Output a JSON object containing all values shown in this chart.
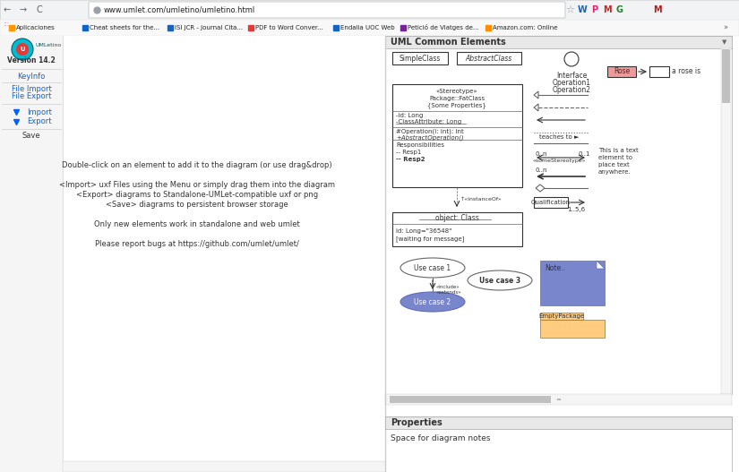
{
  "bg_color": "#ffffff",
  "url": "www.umlet.com/umletino/umletino.html",
  "bookmarks": [
    "Aplicaciones",
    "Cheat sheets for the...",
    "ISI JCR - Journal Cita...",
    "PDF to Word Conver...",
    "Endalia UOC Web",
    "Petició de Viatges de...",
    "Amazon.com: Online"
  ],
  "version_text": "Version 14.2",
  "main_text_lines": [
    "Double-click on an element to add it to the diagram (or use drag&drop)",
    "",
    "<Import> uxf Files using the Menu or simply drag them into the diagram",
    "<Export> diagrams to Standalone-UMLet-compatible uxf or png",
    "<Save> diagrams to persistent browser storage",
    "",
    "Only new elements work in standalone and web umlet",
    "",
    "Please report bugs at https://github.com/umlet/umlet/"
  ],
  "right_panel_title": "UML Common Elements",
  "bottom_panel_title": "Properties",
  "bottom_panel_text": "Space for diagram notes",
  "uml_note_color": "#7986cb",
  "uml_note_text": "Note..",
  "uml_package_color": "#ffcc80",
  "uml_package_text": "EmptyPackage",
  "uml_usecase1_text": "Use case 1",
  "uml_usecase2_color": "#7986cb",
  "uml_usecase2_text": "Use case 2",
  "uml_usecase3_text": "Use case 3",
  "uml_rose_color": "#ef9a9a",
  "simple_class_text": "SimpleClass",
  "abstract_class_text": "AbstractClass"
}
